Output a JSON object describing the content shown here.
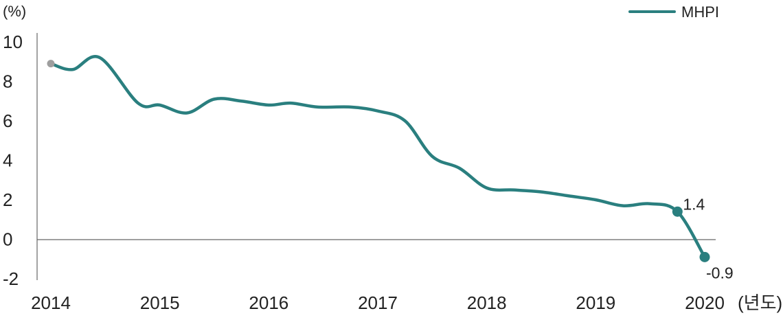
{
  "chart_data": {
    "type": "line",
    "y_unit": "(%)",
    "x_unit": "(년도)",
    "xlim": [
      2014,
      2020
    ],
    "ylim": [
      -2,
      10
    ],
    "y_ticks": [
      "10",
      "8",
      "6",
      "4",
      "2",
      "0",
      "-2"
    ],
    "x_ticks": [
      "2014",
      "2015",
      "2016",
      "2017",
      "2018",
      "2019",
      "2020"
    ],
    "legend": {
      "position": "top-right",
      "label": "MHPI"
    },
    "grid": false,
    "colors": {
      "series": "#2a7f7f",
      "start_marker": "#9e9e9e"
    },
    "series": [
      {
        "name": "MHPI",
        "x": [
          2014.0,
          2014.2,
          2014.45,
          2014.8,
          2015.0,
          2015.25,
          2015.5,
          2015.75,
          2016.0,
          2016.2,
          2016.45,
          2016.75,
          2017.0,
          2017.25,
          2017.5,
          2017.75,
          2018.0,
          2018.25,
          2018.5,
          2018.75,
          2019.0,
          2019.25,
          2019.5,
          2019.75,
          2020.0
        ],
        "y": [
          8.9,
          8.6,
          9.2,
          6.9,
          6.8,
          6.4,
          7.1,
          7.0,
          6.8,
          6.9,
          6.7,
          6.7,
          6.5,
          6.0,
          4.2,
          3.6,
          2.6,
          2.5,
          2.4,
          2.2,
          2.0,
          1.7,
          1.8,
          1.4,
          -0.9
        ]
      }
    ],
    "annotations": [
      {
        "x": 2019.75,
        "y": 1.4,
        "text": "1.4"
      },
      {
        "x": 2020.0,
        "y": -0.9,
        "text": "-0.9"
      }
    ]
  }
}
